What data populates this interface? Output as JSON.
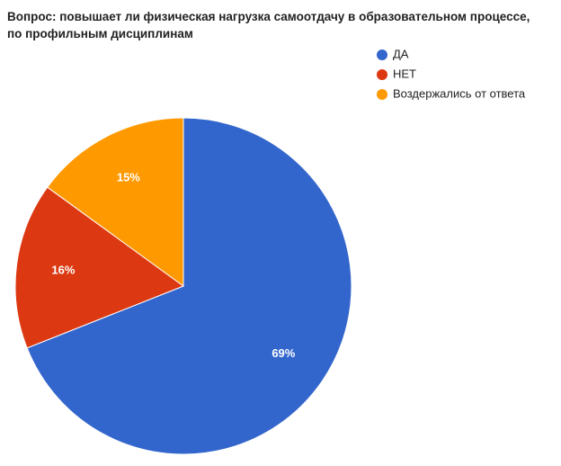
{
  "chart_data": {
    "type": "pie",
    "title": "Вопрос: повышает ли физическая нагрузка самоотдачу в образовательном процессе, по профильным дисциплинам",
    "categories": [
      "ДА",
      "НЕТ",
      "Воздержались от ответа"
    ],
    "values": [
      69,
      16,
      15
    ],
    "value_labels": [
      "69%",
      "16%",
      "15%"
    ],
    "colors": [
      "#3366cc",
      "#dc3912",
      "#ff9900"
    ],
    "legend": "right"
  }
}
